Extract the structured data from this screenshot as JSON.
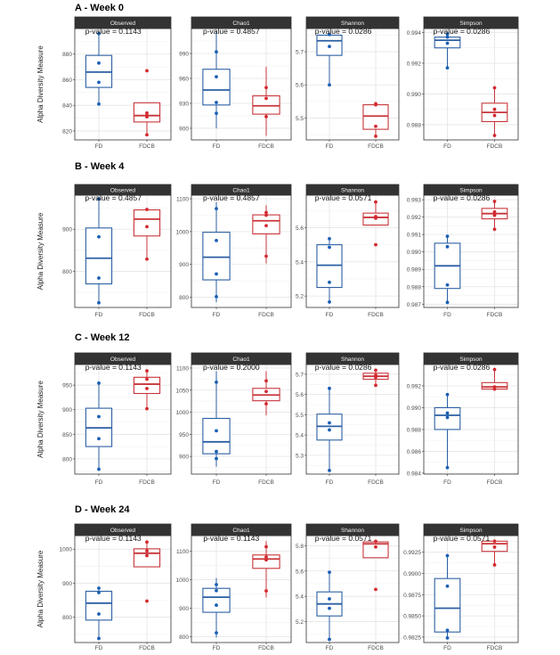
{
  "chart_data": {
    "type": "box",
    "ylabel": "Alpha Diversity Measure",
    "groups": [
      "FD",
      "FDCB"
    ],
    "colors": {
      "FD": "#2b5fa3",
      "FDCB": "#c8353a",
      "FD_point": "#1a5fb4",
      "FDCB_point": "#d42a2f",
      "strip": "#333333"
    },
    "grid": true,
    "rows": [
      {
        "title": "A - Week 0",
        "panels": [
          {
            "metric": "Observed",
            "pvalue": "p-value = 0.1143",
            "ylim": [
              813,
              900
            ],
            "ticks": [
              820,
              840,
              860,
              880
            ],
            "tick_labels": [
              "820",
              "840",
              "860",
              "880"
            ],
            "FD": {
              "box": [
                841,
                854,
                866,
                879,
                896
              ],
              "points": [
                896,
                873,
                858,
                841
              ]
            },
            "FDCB": {
              "box": [
                817,
                827,
                832,
                842,
                842
              ],
              "points": [
                867,
                834,
                832,
                831,
                817
              ]
            }
          },
          {
            "metric": "Chao1",
            "pvalue": "p-value = 0.4857",
            "ylim": [
              886,
              1020
            ],
            "ticks": [
              900,
              930,
              960,
              990
            ],
            "tick_labels": [
              "900",
              "930",
              "960",
              "990"
            ],
            "FD": {
              "box": [
                900,
                928,
                946,
                971,
                1018
              ],
              "points": [
                992,
                962,
                931,
                918
              ]
            },
            "FDCB": {
              "box": [
                891,
                917,
                927,
                939,
                974
              ],
              "points": [
                949,
                936,
                914
              ]
            }
          },
          {
            "metric": "Shannon",
            "pvalue": "p-value = 0.0286",
            "ylim": [
              5.434,
              5.77
            ],
            "ticks": [
              5.5,
              5.6,
              5.7
            ],
            "tick_labels": [
              "5.5",
              "5.6",
              "5.7"
            ],
            "FD": {
              "box": [
                5.6,
                5.689,
                5.733,
                5.75,
                5.755
              ],
              "points": [
                5.752,
                5.716,
                5.6
              ]
            },
            "FDCB": {
              "box": [
                5.445,
                5.466,
                5.506,
                5.54,
                5.543
              ],
              "points": [
                5.543,
                5.54,
                5.475,
                5.445
              ]
            }
          },
          {
            "metric": "Simpson",
            "pvalue": "p-value = 0.0286",
            "ylim": [
              0.98701,
              0.99426
            ],
            "ticks": [
              0.988,
              0.99,
              0.992,
              0.994
            ],
            "tick_labels": [
              "0.988",
              "0.990",
              "0.992",
              "0.994"
            ],
            "FD": {
              "box": [
                0.9917,
                0.993,
                0.9935,
                0.9937,
                0.9939
              ],
              "points": [
                0.9939,
                0.9937,
                0.9933,
                0.9917
              ]
            },
            "FDCB": {
              "box": [
                0.9873,
                0.9882,
                0.9888,
                0.9894,
                0.9904
              ],
              "points": [
                0.9904,
                0.989,
                0.9886,
                0.9873
              ]
            }
          }
        ]
      },
      {
        "title": "B - Week 4",
        "panels": [
          {
            "metric": "Observed",
            "pvalue": "p-value = 0.4857",
            "ylim": [
              714,
              981
            ],
            "ticks": [
              800,
              900
            ],
            "tick_labels": [
              "800",
              "900"
            ],
            "FD": {
              "box": [
                725,
                770,
                831,
                903,
                972
              ],
              "points": [
                972,
                882,
                784,
                725
              ]
            },
            "FDCB": {
              "box": [
                829,
                884,
                924,
                946,
                947
              ],
              "points": [
                947,
                906,
                829
              ]
            }
          },
          {
            "metric": "Chao1",
            "pvalue": "p-value = 0.4857",
            "ylim": [
              769,
              1111
            ],
            "ticks": [
              800,
              900,
              1000,
              1100
            ],
            "tick_labels": [
              "800",
              "900",
              "1000",
              "1100"
            ],
            "FD": {
              "box": [
                785,
                853,
                922,
                998,
                1090
              ],
              "points": [
                1070,
                973,
                871,
                802
              ]
            },
            "FDCB": {
              "box": [
                903,
                993,
                1033,
                1051,
                1080
              ],
              "points": [
                1058,
                1050,
                1018,
                925
              ]
            }
          },
          {
            "metric": "Shannon",
            "pvalue": "p-value = 0.0571",
            "ylim": [
              5.133,
              5.79
            ],
            "ticks": [
              5.2,
              5.4,
              5.6
            ],
            "tick_labels": [
              "5.2",
              "5.4",
              "5.6"
            ],
            "FD": {
              "box": [
                5.165,
                5.25,
                5.38,
                5.5,
                5.535
              ],
              "points": [
                5.535,
                5.485,
                5.28,
                5.165
              ]
            },
            "FDCB": {
              "box": [
                5.615,
                5.615,
                5.66,
                5.685,
                5.75
              ],
              "points": [
                5.75,
                5.665,
                5.655,
                5.5
              ]
            }
          },
          {
            "metric": "Simpson",
            "pvalue": "p-value = 0.0286",
            "ylim": [
              0.98681,
              0.99326
            ],
            "ticks": [
              0.987,
              0.988,
              0.989,
              0.99,
              0.991,
              0.992,
              0.993
            ],
            "tick_labels": [
              "0.987",
              "0.988",
              "0.989",
              "0.990",
              "0.991",
              "0.992",
              "0.993"
            ],
            "FD": {
              "box": [
                0.9871,
                0.9879,
                0.9892,
                0.9905,
                0.9909
              ],
              "points": [
                0.9909,
                0.9903,
                0.9881,
                0.9871
              ]
            },
            "FDCB": {
              "box": [
                0.9913,
                0.9919,
                0.9922,
                0.9925,
                0.9929
              ],
              "points": [
                0.9929,
                0.9923,
                0.9921,
                0.9913
              ]
            }
          }
        ]
      },
      {
        "title": "C - Week 12",
        "panels": [
          {
            "metric": "Observed",
            "pvalue": "p-value = 0.1143",
            "ylim": [
              769,
              992
            ],
            "ticks": [
              800,
              850,
              900,
              950
            ],
            "tick_labels": [
              "800",
              "850",
              "900",
              "950"
            ],
            "FD": {
              "box": [
                779,
                825,
                863,
                903,
                954
              ],
              "points": [
                954,
                886,
                841,
                779
              ]
            },
            "FDCB": {
              "box": [
                902,
                933,
                952,
                966,
                979
              ],
              "points": [
                979,
                962,
                943,
                902
              ]
            }
          },
          {
            "metric": "Chao1",
            "pvalue": "p-value = 0.2000",
            "ylim": [
              860,
              1108
            ],
            "ticks": [
              900,
              950,
              1000,
              1050,
              1100
            ],
            "tick_labels": [
              "900",
              "950",
              "1000",
              "1050",
              "1100"
            ],
            "FD": {
              "box": [
                877,
                906,
                933,
                986,
                1093
              ],
              "points": [
                1068,
                958,
                911,
                895
              ]
            },
            "FDCB": {
              "box": [
                993,
                1026,
                1039,
                1054,
                1093
              ],
              "points": [
                1071,
                1047,
                1019
              ]
            }
          },
          {
            "metric": "Shannon",
            "pvalue": "p-value = 0.0286",
            "ylim": [
              5.207,
              5.748
            ],
            "ticks": [
              5.3,
              5.4,
              5.5,
              5.6,
              5.7
            ],
            "tick_labels": [
              "5.3",
              "5.4",
              "5.5",
              "5.6",
              "5.7"
            ],
            "FD": {
              "box": [
                5.225,
                5.375,
                5.443,
                5.503,
                5.63
              ],
              "points": [
                5.63,
                5.46,
                5.425,
                5.225
              ]
            },
            "FDCB": {
              "box": [
                5.645,
                5.675,
                5.69,
                5.705,
                5.72
              ],
              "points": [
                5.72,
                5.695,
                5.685,
                5.645
              ]
            }
          },
          {
            "metric": "Simpson",
            "pvalue": "p-value = 0.0286",
            "ylim": [
              0.98391,
              0.99396
            ],
            "ticks": [
              0.984,
              0.986,
              0.988,
              0.99,
              0.992
            ],
            "tick_labels": [
              "0.984",
              "0.986",
              "0.988",
              "0.990",
              "0.992"
            ],
            "FD": {
              "box": [
                0.9845,
                0.988,
                0.9893,
                0.99,
                0.9912
              ],
              "points": [
                0.9912,
                0.9895,
                0.9891,
                0.9845
              ]
            },
            "FDCB": {
              "box": [
                0.9917,
                0.9917,
                0.9919,
                0.9923,
                0.9935
              ],
              "points": [
                0.9935,
                0.9919,
                0.9917
              ]
            }
          }
        ]
      },
      {
        "title": "D - Week 24",
        "panels": [
          {
            "metric": "Observed",
            "pvalue": "p-value = 0.1143",
            "ylim": [
              725,
              1040
            ],
            "ticks": [
              800,
              900,
              1000
            ],
            "tick_labels": [
              "800",
              "900",
              "1000"
            ],
            "FD": {
              "box": [
                737,
                791,
                841,
                876,
                885
              ],
              "points": [
                885,
                872,
                809,
                737
              ]
            },
            "FDCB": {
              "box": [
                948,
                948,
                988,
                1001,
                1021
              ],
              "points": [
                1021,
                995,
                981,
                847
              ]
            }
          },
          {
            "metric": "Chao1",
            "pvalue": "p-value = 0.1143",
            "ylim": [
              780,
              1155
            ],
            "ticks": [
              800,
              900,
              1000,
              1100
            ],
            "tick_labels": [
              "800",
              "900",
              "1000",
              "1100"
            ],
            "FD": {
              "box": [
                798,
                886,
                939,
                970,
                1006
              ],
              "points": [
                983,
                962,
                911,
                814
              ]
            },
            "FDCB": {
              "box": [
                938,
                1040,
                1073,
                1087,
                1136
              ],
              "points": [
                1116,
                1080,
                1070,
                961
              ]
            }
          },
          {
            "metric": "Shannon",
            "pvalue": "p-value = 0.0571",
            "ylim": [
              5.035,
              5.88
            ],
            "ticks": [
              5.2,
              5.4,
              5.6,
              5.8
            ],
            "tick_labels": [
              "5.2",
              "5.4",
              "5.6",
              "5.8"
            ],
            "FD": {
              "box": [
                5.06,
                5.245,
                5.34,
                5.435,
                5.59
              ],
              "points": [
                5.59,
                5.38,
                5.305,
                5.06
              ]
            },
            "FDCB": {
              "box": [
                5.705,
                5.705,
                5.815,
                5.83,
                5.835
              ],
              "points": [
                5.835,
                5.79,
                5.455
              ]
            }
          },
          {
            "metric": "Simpson",
            "pvalue": "p-value = 0.0571",
            "ylim": [
              0.98186,
              0.99446
            ],
            "ticks": [
              0.9825,
              0.985,
              0.9875,
              0.99,
              0.9925
            ],
            "tick_labels": [
              "0.9825",
              "0.9850",
              "0.9875",
              "0.9900",
              "0.9925"
            ],
            "FD": {
              "box": [
                0.9824,
                0.9831,
                0.9859,
                0.9894,
                0.9921
              ],
              "points": [
                0.9921,
                0.9885,
                0.9833,
                0.9824
              ]
            },
            "FDCB": {
              "box": [
                0.991,
                0.9926,
                0.9935,
                0.9938,
                0.9938
              ],
              "points": [
                0.9938,
                0.9931,
                0.991
              ]
            }
          }
        ]
      }
    ]
  }
}
